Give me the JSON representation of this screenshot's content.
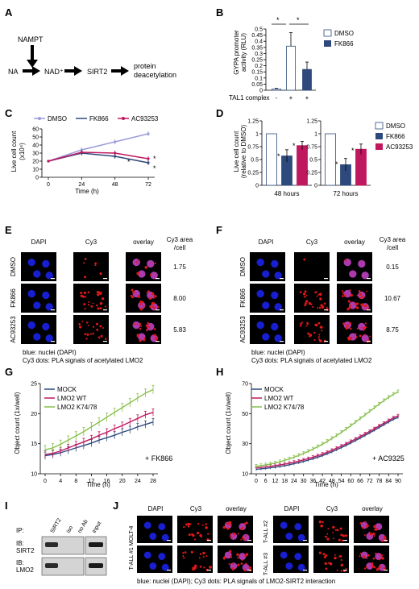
{
  "panel_letters": [
    "A",
    "B",
    "C",
    "D",
    "E",
    "F",
    "G",
    "H",
    "I",
    "J"
  ],
  "colors": {
    "dmso_open": "#ffffff",
    "fk866": "#2e4a7d",
    "ac93253": "#c0185f",
    "dmso_line": "#9b9bd9",
    "mock": "#2e4a7d",
    "lmo2wt": "#c0185f",
    "k7478": "#86c04b",
    "cell_blue": "#1a22e8",
    "dot_red": "#e01818",
    "overlay_magenta": "#c040c0"
  },
  "panelA": {
    "nampt": "NAMPT",
    "na": "NA",
    "nad": "NAD⁺",
    "sirt2": "SIRT2",
    "protein": "protein",
    "deacetylation": "deacetylation"
  },
  "panelB": {
    "ylabel_line1": "GYPA promoter",
    "ylabel_line2": "activity (RLU)",
    "legend": [
      "DMSO",
      "FK866"
    ],
    "x_row_label": "TAL1 complex",
    "x_signs": [
      "-",
      "+",
      "+"
    ],
    "sig": [
      "*",
      "*"
    ]
  },
  "panelC": {
    "legend": [
      "DMSO",
      "FK866",
      "AC93253"
    ],
    "ylabel_line1": "Live cell count",
    "ylabel_line2": "(x10⁴)",
    "xlabel": "Time (h)",
    "sig": [
      "*",
      "*",
      "*"
    ]
  },
  "panelD": {
    "ylabel_line1": "Live cell count",
    "ylabel_line2": "(relative to DMSO)",
    "legend": [
      "DMSO",
      "FK866",
      "AC93253"
    ],
    "sig": [
      "*",
      "*",
      "*",
      "*"
    ]
  },
  "panelE": {
    "cols": [
      "DAPI",
      "Cy3",
      "overlay"
    ],
    "area_header_1": "Cy3 area",
    "area_header_2": "/cell",
    "rows": [
      "DMSO",
      "FK866",
      "AC93253"
    ],
    "areas": [
      "1.75",
      "8.00",
      "5.83"
    ],
    "caption1": "blue: nuclei (DAPI)",
    "caption2": "Cy3 dots: PLA signals of acetylated LMO2"
  },
  "panelF": {
    "cols": [
      "DAPI",
      "Cy3",
      "overlay"
    ],
    "area_header_1": "Cy3 area",
    "area_header_2": "/cell",
    "rows": [
      "DMSO",
      "FK866",
      "AC93253"
    ],
    "areas": [
      "0.15",
      "10.67",
      "8.75"
    ],
    "caption1": "blue: nuclei (DAPI)",
    "caption2": "Cy3 dots: PLA signals of acetylated LMO2"
  },
  "panelG": {
    "legend": [
      "MOCK",
      "LMO2 WT",
      "LMO2 K74/78"
    ],
    "ylabel": "Object count (1x/well)",
    "xlabel": "Time (h)",
    "annotation": "+ FK866"
  },
  "panelH": {
    "legend": [
      "MOCK",
      "LMO2 WT",
      "LMO2 K74/78"
    ],
    "ylabel": "Object count (1x/well)",
    "xlabel": "Time (h)",
    "annotation": "+ AC9325"
  },
  "panelI": {
    "ip_label": "IP:",
    "lanes": [
      "SIRT2",
      "iso",
      "no Ab",
      "input"
    ],
    "ib1_line1": "IB:",
    "ib1_line2": "SIRT2",
    "ib2_line1": "IB:",
    "ib2_line2": "LMO2"
  },
  "panelJ": {
    "cols": [
      "DAPI",
      "Cy3",
      "overlay"
    ],
    "row_labels": [
      "T-ALL #1 MOLT-4",
      "T-ALL #2",
      "T-ALL #3"
    ],
    "caption": "blue: nuclei (DAPI); Cy3 dots: PLA signals of LMO2-SIRT2 interaction"
  },
  "chart_data": [
    {
      "id": "B",
      "type": "bar",
      "categories": [
        "- TAL1",
        "+ TAL1 DMSO",
        "+ TAL1 FK866"
      ],
      "values": [
        0.01,
        0.36,
        0.17
      ],
      "errors": [
        0.005,
        0.11,
        0.06
      ],
      "ylim": [
        0,
        0.5
      ],
      "yticks": [
        0,
        0.05,
        0.1,
        0.15,
        0.2,
        0.25,
        0.3,
        0.35,
        0.4,
        0.45,
        0.5
      ]
    },
    {
      "id": "C",
      "type": "line",
      "x": [
        0,
        24,
        48,
        72
      ],
      "xticks": [
        0,
        24,
        48,
        72
      ],
      "ylim": [
        0,
        60
      ],
      "yticks": [
        0,
        10,
        20,
        30,
        40,
        50,
        60
      ],
      "series": [
        {
          "name": "DMSO",
          "values": [
            20,
            34,
            44,
            54
          ],
          "errors": [
            1,
            3,
            3,
            3
          ]
        },
        {
          "name": "FK866",
          "values": [
            20,
            30,
            26,
            18
          ],
          "errors": [
            1,
            3,
            3,
            3
          ]
        },
        {
          "name": "AC93253",
          "values": [
            20,
            31,
            30,
            23
          ],
          "errors": [
            1,
            3,
            3,
            3
          ]
        }
      ]
    },
    {
      "id": "D1",
      "type": "bar",
      "title": "48 hours",
      "categories": [
        "DMSO",
        "FK866",
        "AC93253"
      ],
      "values": [
        1.0,
        0.57,
        0.77
      ],
      "errors": [
        0,
        0.12,
        0.08
      ],
      "ylim": [
        0,
        1.25
      ],
      "yticks": [
        0,
        0.25,
        0.5,
        0.75,
        1,
        1.25
      ]
    },
    {
      "id": "D2",
      "type": "bar",
      "title": "72 hours",
      "categories": [
        "DMSO",
        "FK866",
        "AC93253"
      ],
      "values": [
        1.0,
        0.4,
        0.7
      ],
      "errors": [
        0,
        0.12,
        0.1
      ],
      "ylim": [
        0,
        1.25
      ],
      "yticks": [
        0,
        0.25,
        0.5,
        0.75,
        1,
        1.25
      ]
    },
    {
      "id": "G",
      "type": "line",
      "x": [
        0,
        2,
        4,
        6,
        8,
        10,
        12,
        14,
        16,
        18,
        20,
        22,
        24,
        26,
        28
      ],
      "xticks": [
        0,
        4,
        8,
        12,
        16,
        20,
        24,
        28
      ],
      "ylim": [
        10,
        25
      ],
      "yticks": [
        10,
        15,
        20,
        25
      ],
      "series": [
        {
          "name": "MOCK",
          "values": [
            13,
            13.2,
            13.5,
            13.9,
            14.3,
            14.7,
            15.1,
            15.6,
            16.0,
            16.4,
            16.9,
            17.3,
            17.8,
            18.2,
            18.6
          ],
          "errors": 0.6
        },
        {
          "name": "LMO2 WT",
          "values": [
            13.2,
            13.4,
            13.8,
            14.3,
            14.8,
            15.3,
            15.8,
            16.4,
            16.9,
            17.5,
            18.0,
            18.6,
            19.2,
            19.8,
            20.2
          ],
          "errors": 0.6
        },
        {
          "name": "LMO2 K74/78",
          "values": [
            14.0,
            14.3,
            14.9,
            15.6,
            16.3,
            17.0,
            17.8,
            18.6,
            19.4,
            20.2,
            21.0,
            21.8,
            22.6,
            23.4,
            24.0
          ],
          "errors": 0.7
        }
      ]
    },
    {
      "id": "H",
      "type": "line",
      "x": [
        0,
        3,
        6,
        9,
        12,
        15,
        18,
        21,
        24,
        27,
        30,
        33,
        36,
        39,
        42,
        45,
        48,
        51,
        54,
        57,
        60,
        63,
        66,
        69,
        72,
        75,
        78,
        81,
        84,
        87,
        90
      ],
      "xticks": [
        0,
        6,
        12,
        18,
        24,
        30,
        36,
        42,
        48,
        54,
        60,
        66,
        72,
        78,
        84,
        90
      ],
      "ylim": [
        10,
        70
      ],
      "yticks": [
        10,
        30,
        50,
        70
      ],
      "series": [
        {
          "name": "MOCK",
          "values": [
            13,
            13.3,
            13.6,
            14.0,
            14.4,
            14.9,
            15.4,
            16.0,
            16.7,
            17.4,
            18.2,
            19.1,
            20.0,
            21.0,
            22.1,
            23.3,
            24.6,
            26.0,
            27.4,
            28.9,
            30.5,
            32.1,
            33.8,
            35.5,
            37.2,
            39.0,
            40.8,
            42.6,
            44.4,
            46.2,
            47.5
          ],
          "errors": 1.0
        },
        {
          "name": "LMO2 WT",
          "values": [
            14,
            14.3,
            14.6,
            15.0,
            15.4,
            15.9,
            16.4,
            17.0,
            17.7,
            18.4,
            19.2,
            20.1,
            21.0,
            22.0,
            23.1,
            24.3,
            25.6,
            27.0,
            28.4,
            29.9,
            31.5,
            33.1,
            34.8,
            36.5,
            38.2,
            40.0,
            41.8,
            43.6,
            45.4,
            47.2,
            48.5
          ],
          "errors": 1.0
        },
        {
          "name": "LMO2 K74/78",
          "values": [
            15,
            15.4,
            15.9,
            16.5,
            17.2,
            18.0,
            18.9,
            19.9,
            21.0,
            22.2,
            23.5,
            24.9,
            26.4,
            28.0,
            29.7,
            31.5,
            33.4,
            35.4,
            37.5,
            39.7,
            42.0,
            44.3,
            46.7,
            49.1,
            51.5,
            53.9,
            56.3,
            58.6,
            60.8,
            62.8,
            64.5
          ],
          "errors": 1.2
        }
      ]
    }
  ]
}
